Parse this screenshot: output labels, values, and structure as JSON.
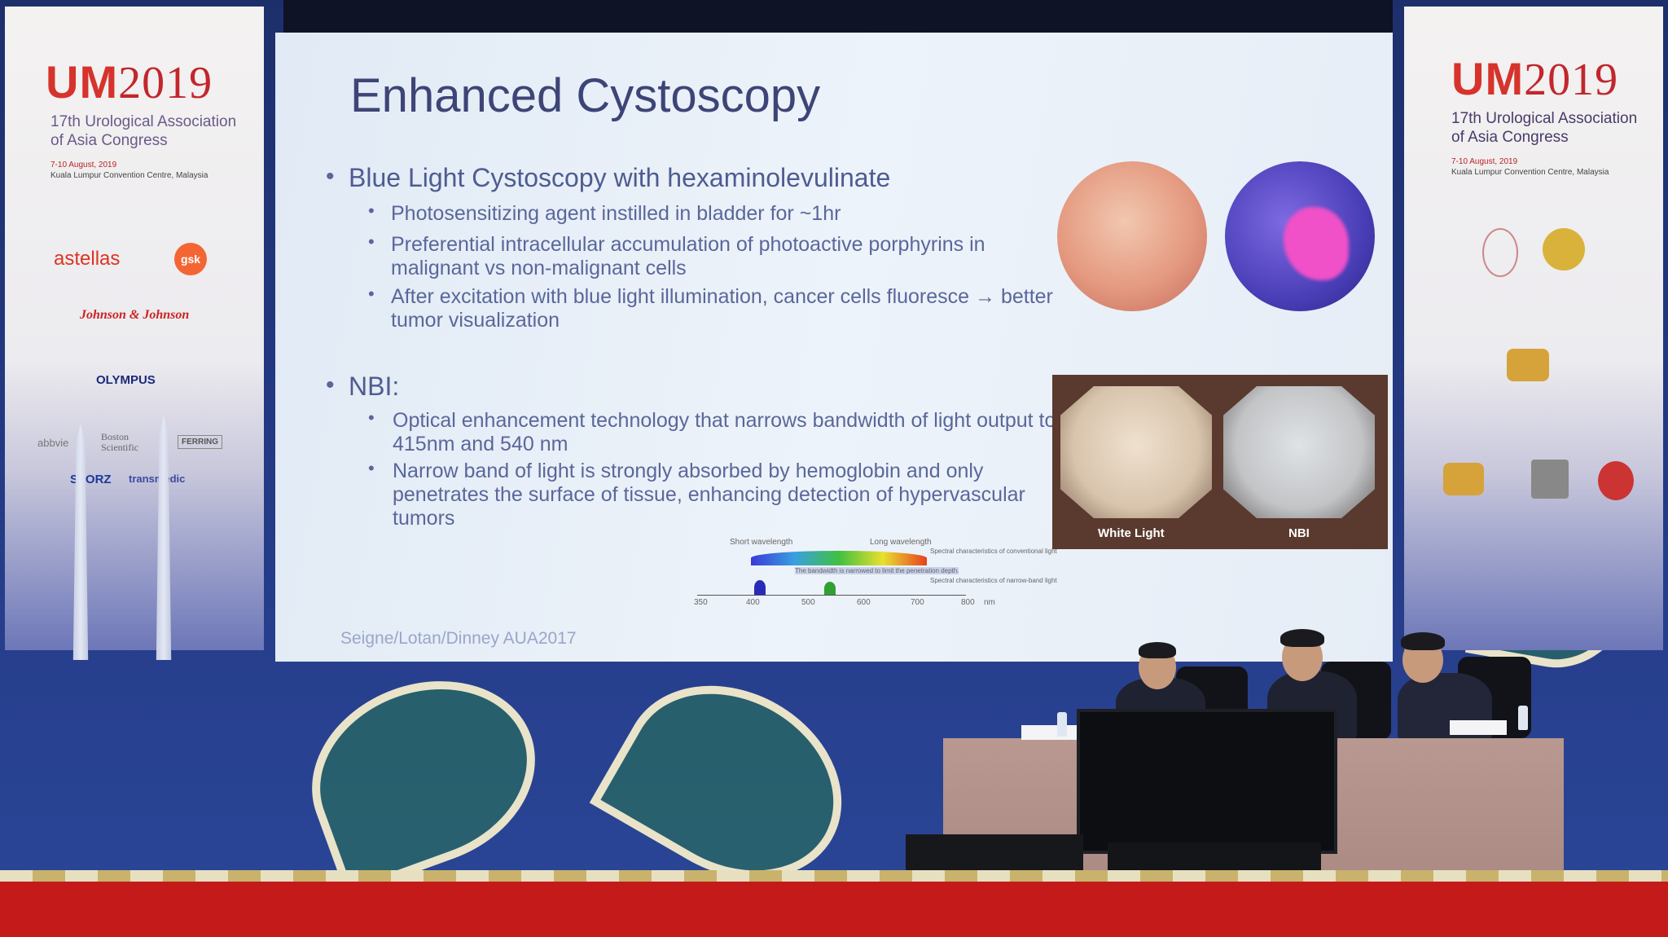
{
  "banners": {
    "logo_letters": "UM",
    "logo_year": "2019",
    "congress_line1": "17th Urological Association",
    "congress_line2": "of Asia Congress",
    "dates": "7-10 August, 2019",
    "venue": "Kuala Lumpur Convention Centre, Malaysia",
    "sponsors": [
      "astellas",
      "gsk",
      "Johnson & Johnson",
      "OLYMPUS",
      "abbvie",
      "Boston Scientific",
      "FERRING",
      "STORZ",
      "transmedic"
    ]
  },
  "slide": {
    "title": "Enhanced Cystoscopy",
    "section1": {
      "heading": "Blue Light Cystoscopy with hexaminolevulinate",
      "bullets": [
        "Photosensitizing agent instilled in bladder for ~1hr",
        "Preferential intracellular accumulation of photoactive porphyrins in malignant vs non-malignant cells",
        "After excitation with blue light illumination, cancer cells fluoresce → better tumor visualization"
      ]
    },
    "section2": {
      "heading": "NBI:",
      "bullets": [
        "Optical enhancement technology that narrows bandwidth of light output to 415nm and 540 nm",
        "Narrow band of light is strongly absorbed by hemoglobin and only penetrates the surface of tissue, enhancing detection of hypervascular tumors"
      ]
    },
    "nbi_labels": {
      "left": "White Light",
      "right": "NBI"
    },
    "spectrum": {
      "short": "Short wavelength",
      "long": "Long wavelength",
      "conv": "Spectral characteristics of conventional light",
      "narrowed": "The bandwidth is narrowed to limit the penetration depth.",
      "nb": "Spectral characteristics of narrow-band light",
      "ticks": [
        "350",
        "400",
        "500",
        "600",
        "700",
        "800"
      ],
      "unit": "nm"
    },
    "citation": "Seigne/Lotan/Dinney AUA2017"
  }
}
